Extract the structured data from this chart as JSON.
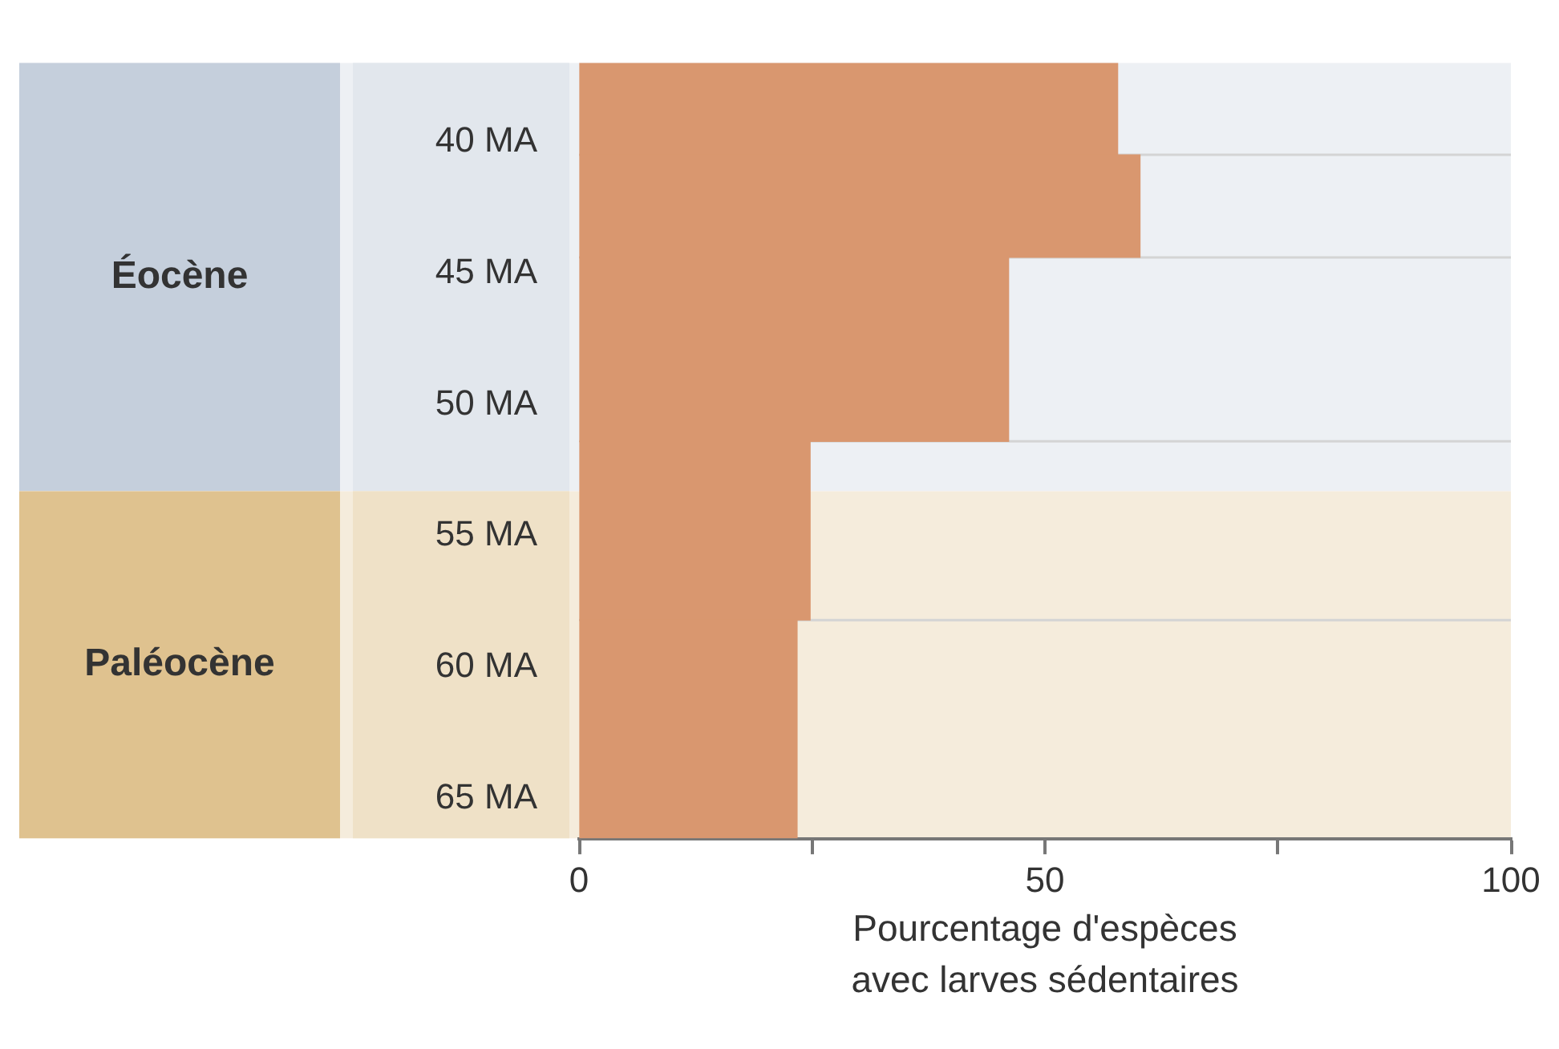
{
  "chart_data": {
    "type": "histogram",
    "orientation": "horizontal",
    "xlabel": "Pourcentage d'espèces\navec larves sédentaires",
    "bins": [
      37,
      40.5,
      44.4,
      51.4,
      58.2,
      66.5
    ],
    "values": [
      57.8,
      60.2,
      46.1,
      24.8,
      23.4
    ],
    "color": "#d9976f",
    "xlim": [
      0,
      100
    ],
    "xticks": [
      0,
      {
        "value": 25,
        "label": null
      },
      50,
      {
        "value": 75,
        "label": null
      },
      100
    ],
    "ylim": [
      66.5,
      37
    ],
    "yticks": [
      {
        "value": 40,
        "label": "40 MA"
      },
      {
        "value": 45,
        "label": "45 MA"
      },
      {
        "value": 50,
        "label": "50 MA"
      },
      {
        "value": 55,
        "label": "55 MA"
      },
      {
        "value": 60,
        "label": "60 MA"
      },
      {
        "value": 65,
        "label": "65 MA"
      }
    ],
    "bands": [
      {
        "axis": "y",
        "from": 37,
        "to": 53.3,
        "label": "Éocène",
        "color": "#edf0f4"
      },
      {
        "axis": "y",
        "from": 53.3,
        "to": 66.5,
        "label": "Paléocène",
        "color": "#f5ecdc"
      }
    ]
  }
}
